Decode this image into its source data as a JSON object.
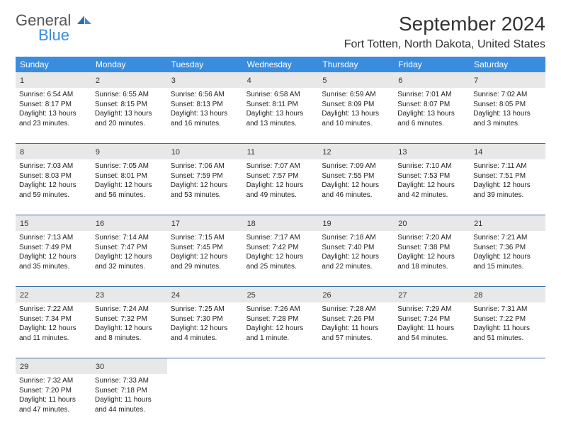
{
  "logo": {
    "general": "General",
    "blue": "Blue"
  },
  "title": "September 2024",
  "location": "Fort Totten, North Dakota, United States",
  "colors": {
    "header_bg": "#3a8dde",
    "header_fg": "#ffffff",
    "daynum_bg": "#e8e8e8",
    "week_border": "#3a6fa8",
    "logo_blue": "#3a8dde"
  },
  "day_labels": [
    "Sunday",
    "Monday",
    "Tuesday",
    "Wednesday",
    "Thursday",
    "Friday",
    "Saturday"
  ],
  "weeks": [
    [
      {
        "n": "1",
        "sr": "Sunrise: 6:54 AM",
        "ss": "Sunset: 8:17 PM",
        "d1": "Daylight: 13 hours",
        "d2": "and 23 minutes."
      },
      {
        "n": "2",
        "sr": "Sunrise: 6:55 AM",
        "ss": "Sunset: 8:15 PM",
        "d1": "Daylight: 13 hours",
        "d2": "and 20 minutes."
      },
      {
        "n": "3",
        "sr": "Sunrise: 6:56 AM",
        "ss": "Sunset: 8:13 PM",
        "d1": "Daylight: 13 hours",
        "d2": "and 16 minutes."
      },
      {
        "n": "4",
        "sr": "Sunrise: 6:58 AM",
        "ss": "Sunset: 8:11 PM",
        "d1": "Daylight: 13 hours",
        "d2": "and 13 minutes."
      },
      {
        "n": "5",
        "sr": "Sunrise: 6:59 AM",
        "ss": "Sunset: 8:09 PM",
        "d1": "Daylight: 13 hours",
        "d2": "and 10 minutes."
      },
      {
        "n": "6",
        "sr": "Sunrise: 7:01 AM",
        "ss": "Sunset: 8:07 PM",
        "d1": "Daylight: 13 hours",
        "d2": "and 6 minutes."
      },
      {
        "n": "7",
        "sr": "Sunrise: 7:02 AM",
        "ss": "Sunset: 8:05 PM",
        "d1": "Daylight: 13 hours",
        "d2": "and 3 minutes."
      }
    ],
    [
      {
        "n": "8",
        "sr": "Sunrise: 7:03 AM",
        "ss": "Sunset: 8:03 PM",
        "d1": "Daylight: 12 hours",
        "d2": "and 59 minutes."
      },
      {
        "n": "9",
        "sr": "Sunrise: 7:05 AM",
        "ss": "Sunset: 8:01 PM",
        "d1": "Daylight: 12 hours",
        "d2": "and 56 minutes."
      },
      {
        "n": "10",
        "sr": "Sunrise: 7:06 AM",
        "ss": "Sunset: 7:59 PM",
        "d1": "Daylight: 12 hours",
        "d2": "and 53 minutes."
      },
      {
        "n": "11",
        "sr": "Sunrise: 7:07 AM",
        "ss": "Sunset: 7:57 PM",
        "d1": "Daylight: 12 hours",
        "d2": "and 49 minutes."
      },
      {
        "n": "12",
        "sr": "Sunrise: 7:09 AM",
        "ss": "Sunset: 7:55 PM",
        "d1": "Daylight: 12 hours",
        "d2": "and 46 minutes."
      },
      {
        "n": "13",
        "sr": "Sunrise: 7:10 AM",
        "ss": "Sunset: 7:53 PM",
        "d1": "Daylight: 12 hours",
        "d2": "and 42 minutes."
      },
      {
        "n": "14",
        "sr": "Sunrise: 7:11 AM",
        "ss": "Sunset: 7:51 PM",
        "d1": "Daylight: 12 hours",
        "d2": "and 39 minutes."
      }
    ],
    [
      {
        "n": "15",
        "sr": "Sunrise: 7:13 AM",
        "ss": "Sunset: 7:49 PM",
        "d1": "Daylight: 12 hours",
        "d2": "and 35 minutes."
      },
      {
        "n": "16",
        "sr": "Sunrise: 7:14 AM",
        "ss": "Sunset: 7:47 PM",
        "d1": "Daylight: 12 hours",
        "d2": "and 32 minutes."
      },
      {
        "n": "17",
        "sr": "Sunrise: 7:15 AM",
        "ss": "Sunset: 7:45 PM",
        "d1": "Daylight: 12 hours",
        "d2": "and 29 minutes."
      },
      {
        "n": "18",
        "sr": "Sunrise: 7:17 AM",
        "ss": "Sunset: 7:42 PM",
        "d1": "Daylight: 12 hours",
        "d2": "and 25 minutes."
      },
      {
        "n": "19",
        "sr": "Sunrise: 7:18 AM",
        "ss": "Sunset: 7:40 PM",
        "d1": "Daylight: 12 hours",
        "d2": "and 22 minutes."
      },
      {
        "n": "20",
        "sr": "Sunrise: 7:20 AM",
        "ss": "Sunset: 7:38 PM",
        "d1": "Daylight: 12 hours",
        "d2": "and 18 minutes."
      },
      {
        "n": "21",
        "sr": "Sunrise: 7:21 AM",
        "ss": "Sunset: 7:36 PM",
        "d1": "Daylight: 12 hours",
        "d2": "and 15 minutes."
      }
    ],
    [
      {
        "n": "22",
        "sr": "Sunrise: 7:22 AM",
        "ss": "Sunset: 7:34 PM",
        "d1": "Daylight: 12 hours",
        "d2": "and 11 minutes."
      },
      {
        "n": "23",
        "sr": "Sunrise: 7:24 AM",
        "ss": "Sunset: 7:32 PM",
        "d1": "Daylight: 12 hours",
        "d2": "and 8 minutes."
      },
      {
        "n": "24",
        "sr": "Sunrise: 7:25 AM",
        "ss": "Sunset: 7:30 PM",
        "d1": "Daylight: 12 hours",
        "d2": "and 4 minutes."
      },
      {
        "n": "25",
        "sr": "Sunrise: 7:26 AM",
        "ss": "Sunset: 7:28 PM",
        "d1": "Daylight: 12 hours",
        "d2": "and 1 minute."
      },
      {
        "n": "26",
        "sr": "Sunrise: 7:28 AM",
        "ss": "Sunset: 7:26 PM",
        "d1": "Daylight: 11 hours",
        "d2": "and 57 minutes."
      },
      {
        "n": "27",
        "sr": "Sunrise: 7:29 AM",
        "ss": "Sunset: 7:24 PM",
        "d1": "Daylight: 11 hours",
        "d2": "and 54 minutes."
      },
      {
        "n": "28",
        "sr": "Sunrise: 7:31 AM",
        "ss": "Sunset: 7:22 PM",
        "d1": "Daylight: 11 hours",
        "d2": "and 51 minutes."
      }
    ],
    [
      {
        "n": "29",
        "sr": "Sunrise: 7:32 AM",
        "ss": "Sunset: 7:20 PM",
        "d1": "Daylight: 11 hours",
        "d2": "and 47 minutes."
      },
      {
        "n": "30",
        "sr": "Sunrise: 7:33 AM",
        "ss": "Sunset: 7:18 PM",
        "d1": "Daylight: 11 hours",
        "d2": "and 44 minutes."
      },
      null,
      null,
      null,
      null,
      null
    ]
  ]
}
